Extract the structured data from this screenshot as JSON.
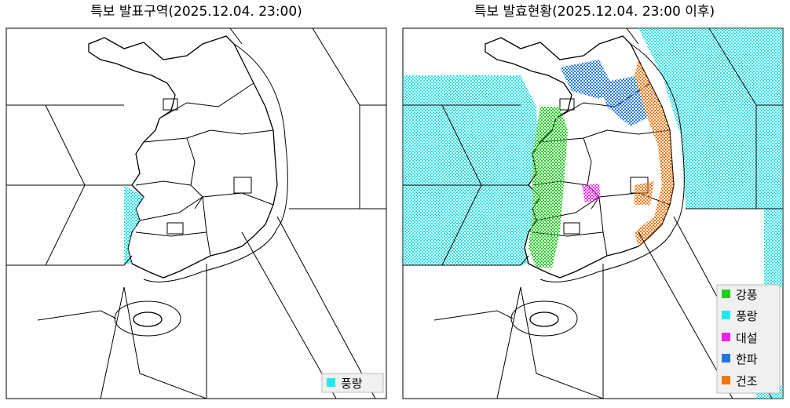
{
  "panels": [
    {
      "title": "특보 발표구역(2025.12.04. 23:00)",
      "legend": [
        "풍랑"
      ]
    },
    {
      "title": "특보 발효현황(2025.12.04. 23:00 이후)",
      "legend": [
        "강풍",
        "풍랑",
        "대설",
        "한파",
        "건조"
      ]
    }
  ]
}
